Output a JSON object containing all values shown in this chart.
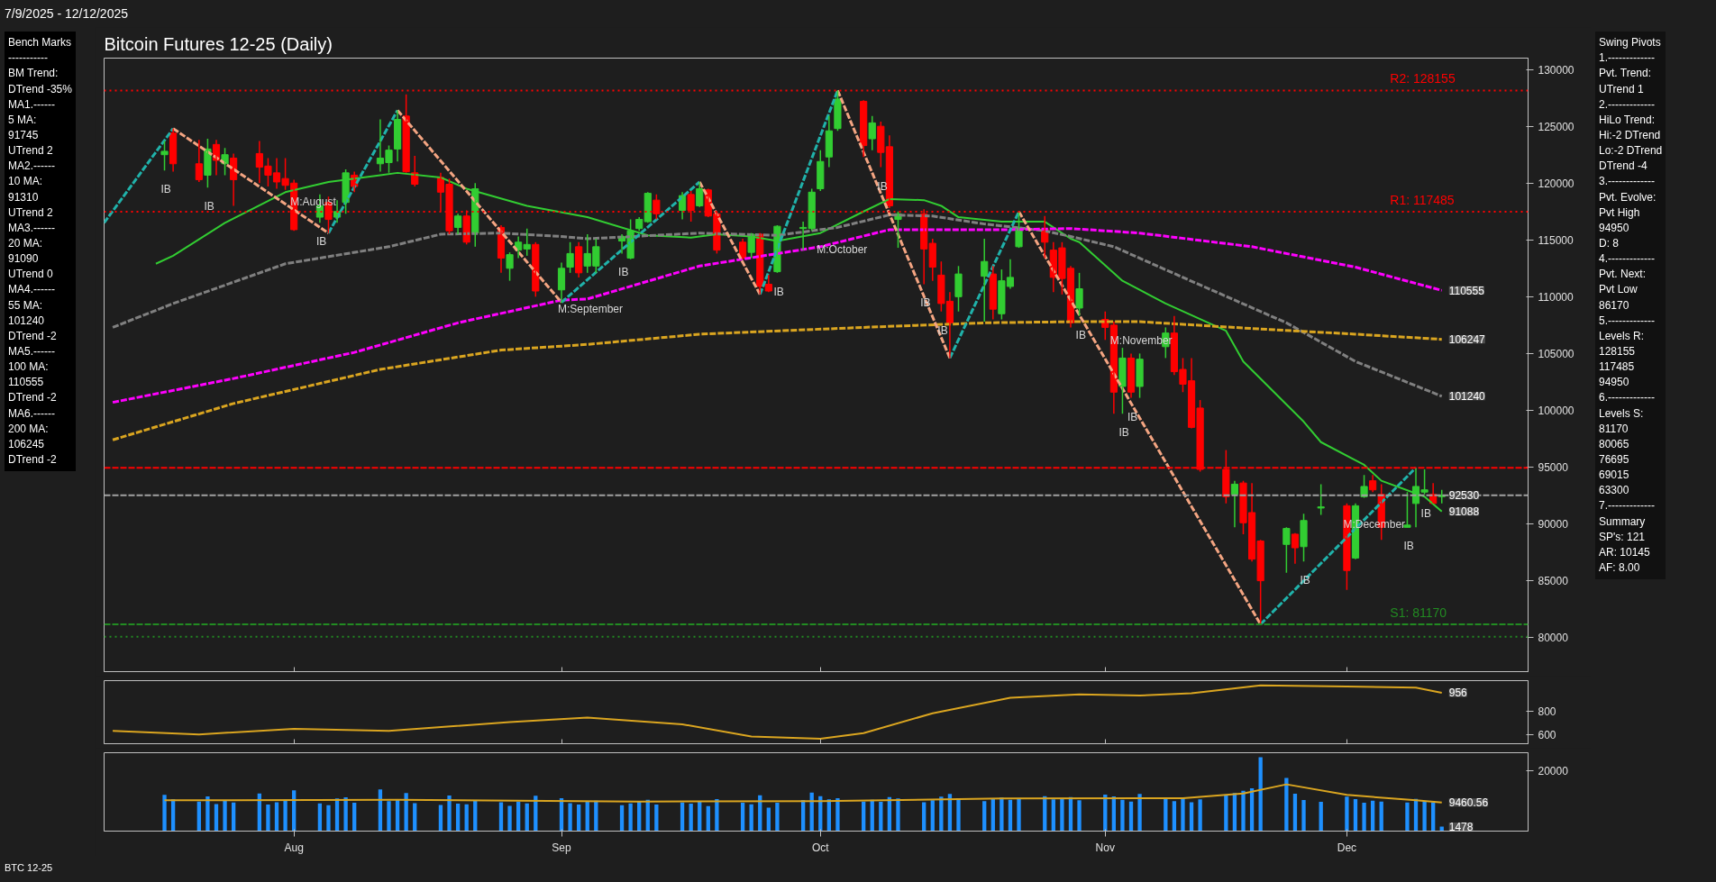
{
  "chart_data": [
    {
      "type": "candlestick",
      "title": "Bitcoin Futures 12-25 (Daily)",
      "x": [
        "2025-07-17",
        "2025-07-18",
        "2025-07-21",
        "2025-07-22",
        "2025-07-23",
        "2025-07-24",
        "2025-07-25",
        "2025-07-28",
        "2025-07-29",
        "2025-07-30",
        "2025-07-31",
        "2025-08-01",
        "2025-08-04",
        "2025-08-05",
        "2025-08-06",
        "2025-08-07",
        "2025-08-08",
        "2025-08-11",
        "2025-08-12",
        "2025-08-13",
        "2025-08-14",
        "2025-08-15",
        "2025-08-18",
        "2025-08-19",
        "2025-08-20",
        "2025-08-21",
        "2025-08-22",
        "2025-08-25",
        "2025-08-26",
        "2025-08-27",
        "2025-08-28",
        "2025-08-29",
        "2025-09-01",
        "2025-09-02",
        "2025-09-03",
        "2025-09-04",
        "2025-09-05",
        "2025-09-08",
        "2025-09-09",
        "2025-09-10",
        "2025-09-11",
        "2025-09-12",
        "2025-09-15",
        "2025-09-16",
        "2025-09-17",
        "2025-09-18",
        "2025-09-19",
        "2025-09-22",
        "2025-09-23",
        "2025-09-24",
        "2025-09-25",
        "2025-09-26",
        "2025-09-29",
        "2025-09-30",
        "2025-10-01",
        "2025-10-02",
        "2025-10-03",
        "2025-10-06",
        "2025-10-07",
        "2025-10-08",
        "2025-10-09",
        "2025-10-10",
        "2025-10-13",
        "2025-10-14",
        "2025-10-15",
        "2025-10-16",
        "2025-10-17",
        "2025-10-20",
        "2025-10-21",
        "2025-10-22",
        "2025-10-23",
        "2025-10-24",
        "2025-10-27",
        "2025-10-28",
        "2025-10-29",
        "2025-10-30",
        "2025-10-31",
        "2025-11-03",
        "2025-11-04",
        "2025-11-05",
        "2025-11-06",
        "2025-11-07",
        "2025-11-10",
        "2025-11-11",
        "2025-11-12",
        "2025-11-13",
        "2025-11-14",
        "2025-11-17",
        "2025-11-18",
        "2025-11-19",
        "2025-11-20",
        "2025-11-21",
        "2025-11-24",
        "2025-11-25",
        "2025-11-26",
        "2025-11-28",
        "2025-12-01",
        "2025-12-02",
        "2025-12-03",
        "2025-12-04",
        "2025-12-05",
        "2025-12-08",
        "2025-12-09",
        "2025-12-10",
        "2025-12-11",
        "2025-12-12"
      ],
      "ohlc": [
        [
          122500,
          123700,
          121100,
          122800
        ],
        [
          124400,
          124800,
          121000,
          121700
        ],
        [
          121700,
          123800,
          120100,
          120300
        ],
        [
          120700,
          123900,
          119600,
          123000
        ],
        [
          123400,
          123800,
          120700,
          122000
        ],
        [
          121700,
          123100,
          120700,
          122500
        ],
        [
          122200,
          122600,
          118000,
          120300
        ],
        [
          122600,
          123700,
          120000,
          121400
        ],
        [
          121500,
          122200,
          119700,
          120700
        ],
        [
          120900,
          122200,
          119500,
          120100
        ],
        [
          120400,
          122200,
          119400,
          119800
        ],
        [
          120000,
          120300,
          115800,
          115900
        ],
        [
          117000,
          119000,
          116500,
          118000
        ],
        [
          118300,
          118800,
          115600,
          116800
        ],
        [
          117000,
          118500,
          116500,
          117500
        ],
        [
          118300,
          121200,
          117300,
          120900
        ],
        [
          120700,
          121000,
          119200,
          119700
        ],
        [
          121700,
          125600,
          121000,
          122200
        ],
        [
          121800,
          123300,
          120900,
          122900
        ],
        [
          123000,
          126400,
          121900,
          125600
        ],
        [
          125900,
          127800,
          120900,
          121000
        ],
        [
          120900,
          122400,
          119700,
          119900
        ],
        [
          120500,
          120900,
          117500,
          119200
        ],
        [
          119900,
          120400,
          115500,
          115800
        ],
        [
          116100,
          117300,
          115500,
          117100
        ],
        [
          117100,
          117600,
          114600,
          114800
        ],
        [
          115600,
          120000,
          114400,
          119500
        ],
        [
          116100,
          116300,
          112100,
          113400
        ],
        [
          112500,
          113900,
          111400,
          113700
        ],
        [
          114100,
          115300,
          113400,
          114800
        ],
        [
          114200,
          116000,
          113600,
          114600
        ],
        [
          114600,
          114800,
          110000,
          110500
        ],
        [
          110600,
          113000,
          109500,
          112500
        ],
        [
          112600,
          114800,
          112100,
          113800
        ],
        [
          114400,
          114800,
          111700,
          112100
        ],
        [
          112700,
          115500,
          112100,
          113800
        ],
        [
          112700,
          115100,
          112100,
          114400
        ],
        [
          114900,
          115500,
          113800,
          115300
        ],
        [
          113400,
          116800,
          113300,
          115800
        ],
        [
          116000,
          117000,
          115800,
          116800
        ],
        [
          116600,
          119200,
          116500,
          119100
        ],
        [
          118500,
          119000,
          116800,
          117300
        ],
        [
          117600,
          119200,
          116800,
          118900
        ],
        [
          119000,
          119300,
          116600,
          117600
        ],
        [
          118000,
          120100,
          117900,
          119500
        ],
        [
          119400,
          119500,
          117000,
          117100
        ],
        [
          117300,
          117500,
          113800,
          114100
        ],
        [
          114800,
          115100,
          113300,
          113400
        ],
        [
          113900,
          115600,
          113400,
          115500
        ],
        [
          115500,
          115600,
          110200,
          110900
        ],
        [
          111100,
          111900,
          110400,
          110500
        ],
        [
          112200,
          116300,
          112100,
          116200
        ],
        [
          116000,
          116600,
          114100,
          116100
        ],
        [
          116000,
          119500,
          115800,
          119200
        ],
        [
          119500,
          122900,
          119300,
          121900
        ],
        [
          122300,
          125900,
          121400,
          124600
        ],
        [
          124800,
          128155,
          124600,
          127400
        ],
        [
          127200,
          127300,
          122300,
          123300
        ],
        [
          123900,
          125900,
          122900,
          125300
        ],
        [
          125000,
          125400,
          121400,
          122700
        ],
        [
          123200,
          124200,
          117800,
          118000
        ],
        [
          116800,
          117500,
          114300,
          117300
        ],
        [
          117300,
          117700,
          111100,
          114200
        ],
        [
          114700,
          115100,
          111400,
          112600
        ],
        [
          111900,
          113100,
          108700,
          109400
        ],
        [
          109600,
          110400,
          104600,
          107700
        ],
        [
          110000,
          112700,
          108700,
          112000
        ],
        [
          111800,
          115100,
          107800,
          113100
        ],
        [
          112000,
          112700,
          108000,
          108900
        ],
        [
          108500,
          112400,
          108000,
          111400
        ],
        [
          110900,
          113300,
          110700,
          111700
        ],
        [
          114400,
          117485,
          114300,
          116100
        ],
        [
          116000,
          117100,
          113400,
          114800
        ],
        [
          114100,
          114800,
          110400,
          111700
        ],
        [
          114300,
          114800,
          110200,
          111600
        ],
        [
          112500,
          112700,
          107300,
          107700
        ],
        [
          109000,
          112100,
          108300,
          110700
        ],
        [
          108000,
          108700,
          106200,
          107300
        ],
        [
          107500,
          107800,
          99700,
          101600
        ],
        [
          102100,
          105500,
          99700,
          104600
        ],
        [
          104600,
          105000,
          101100,
          101600
        ],
        [
          102100,
          105000,
          101100,
          104500
        ],
        [
          105600,
          107300,
          104600,
          106800
        ],
        [
          106800,
          108300,
          103100,
          103400
        ],
        [
          103600,
          104600,
          101600,
          102300
        ],
        [
          102600,
          104600,
          98400,
          98500
        ],
        [
          100200,
          100900,
          94600,
          94800
        ],
        [
          94800,
          96500,
          91800,
          92400
        ],
        [
          92600,
          93800,
          89700,
          93500
        ],
        [
          93600,
          93800,
          89100,
          90100
        ],
        [
          91000,
          93600,
          86700,
          86900
        ],
        [
          88500,
          88600,
          81170,
          85000
        ],
        [
          88200,
          89700,
          85700,
          89600
        ],
        [
          89100,
          89200,
          86500,
          87900
        ],
        [
          88000,
          90900,
          86700,
          90300
        ],
        [
          91400,
          93500,
          90800,
          91500
        ],
        [
          91600,
          91800,
          84200,
          85900
        ],
        [
          87000,
          91800,
          86900,
          91600
        ],
        [
          92400,
          94300,
          92300,
          93300
        ],
        [
          93800,
          94300,
          92800,
          93000
        ],
        [
          92600,
          93500,
          88600,
          89700
        ],
        [
          89700,
          92800,
          89700,
          89900
        ],
        [
          91800,
          94950,
          89700,
          93300
        ],
        [
          92800,
          94800,
          92600,
          93000
        ],
        [
          92600,
          93600,
          91800,
          91800
        ],
        [
          92400,
          93000,
          91800,
          92530
        ]
      ],
      "series": [
        {
          "type": "line",
          "color": "#32cd32",
          "line_style": "solid",
          "x": [
            "2025-07-16",
            "2025-07-18",
            "2025-07-24",
            "2025-07-31",
            "2025-08-05",
            "2025-08-11",
            "2025-08-13",
            "2025-08-18",
            "2025-08-21",
            "2025-08-28",
            "2025-09-04",
            "2025-09-11",
            "2025-09-16",
            "2025-09-19",
            "2025-09-23",
            "2025-09-26",
            "2025-10-01",
            "2025-10-06",
            "2025-10-09",
            "2025-10-13",
            "2025-10-15",
            "2025-10-17",
            "2025-10-22",
            "2025-10-27",
            "2025-10-30",
            "2025-10-31",
            "2025-11-05",
            "2025-11-10",
            "2025-11-17",
            "2025-11-19",
            "2025-11-26",
            "2025-11-28",
            "2025-12-03",
            "2025-12-05",
            "2025-12-10",
            "2025-12-12"
          ],
          "values": [
            112900,
            113600,
            116500,
            119200,
            120100,
            120700,
            120900,
            120500,
            119500,
            118000,
            117000,
            115400,
            115200,
            115500,
            115300,
            114900,
            115600,
            117500,
            118600,
            118500,
            118000,
            117000,
            116600,
            116600,
            115100,
            114800,
            111400,
            109400,
            107000,
            104300,
            99000,
            97200,
            95200,
            93800,
            92400,
            91088
          ]
        },
        {
          "type": "line",
          "color": "#808080",
          "line_style": "dashed",
          "x": [
            "2025-07-11",
            "2025-07-18",
            "2025-07-31",
            "2025-08-12",
            "2025-08-18",
            "2025-08-25",
            "2025-09-01",
            "2025-09-04",
            "2025-09-17",
            "2025-09-26",
            "2025-10-03",
            "2025-10-09",
            "2025-10-14",
            "2025-10-20",
            "2025-10-27",
            "2025-10-30",
            "2025-11-04",
            "2025-11-12",
            "2025-11-24",
            "2025-12-02",
            "2025-12-12"
          ],
          "values": [
            107300,
            109400,
            112900,
            114400,
            115500,
            115600,
            115300,
            115100,
            115600,
            115400,
            116100,
            117200,
            117100,
            116400,
            115800,
            115300,
            114400,
            111700,
            107700,
            104300,
            101240
          ]
        },
        {
          "type": "line",
          "color": "#ff00ff",
          "line_style": "dashed",
          "x": [
            "2025-07-11",
            "2025-07-25",
            "2025-08-08",
            "2025-08-20",
            "2025-09-01",
            "2025-09-04",
            "2025-09-17",
            "2025-10-01",
            "2025-10-09",
            "2025-10-23",
            "2025-10-30",
            "2025-11-07",
            "2025-11-20",
            "2025-12-02",
            "2025-12-12"
          ],
          "values": [
            100700,
            102800,
            105100,
            107700,
            109700,
            109800,
            112700,
            114400,
            115900,
            115900,
            116000,
            115600,
            114400,
            112600,
            110555
          ]
        },
        {
          "type": "line",
          "color": "#daa520",
          "line_style": "dashed",
          "x": [
            "2025-07-11",
            "2025-07-25",
            "2025-08-11",
            "2025-08-25",
            "2025-09-04",
            "2025-09-17",
            "2025-10-06",
            "2025-10-20",
            "2025-10-30",
            "2025-11-07",
            "2025-11-20",
            "2025-12-02",
            "2025-12-12"
          ],
          "values": [
            97400,
            100600,
            103600,
            105300,
            105800,
            106700,
            107300,
            107700,
            107800,
            107800,
            107200,
            106700,
            106247
          ]
        },
        {
          "type": "line",
          "color": "#20b2aa",
          "line_style": "dashed",
          "x": [
            "2025-07-10",
            "2025-07-18"
          ],
          "values": [
            116500,
            124800
          ]
        },
        {
          "type": "line",
          "color": "#f4a582",
          "line_style": "dashed",
          "x": [
            "2025-07-18",
            "2025-08-05"
          ],
          "values": [
            124800,
            115600
          ]
        },
        {
          "type": "line",
          "color": "#20b2aa",
          "line_style": "dashed",
          "x": [
            "2025-08-05",
            "2025-08-13"
          ],
          "values": [
            115600,
            126400
          ]
        },
        {
          "type": "line",
          "color": "#f4a582",
          "line_style": "dashed",
          "x": [
            "2025-08-13",
            "2025-09-01"
          ],
          "values": [
            126400,
            109500
          ]
        },
        {
          "type": "line",
          "color": "#20b2aa",
          "line_style": "dashed",
          "x": [
            "2025-09-01",
            "2025-09-17"
          ],
          "values": [
            109500,
            120100
          ]
        },
        {
          "type": "line",
          "color": "#f4a582",
          "line_style": "dashed",
          "x": [
            "2025-09-17",
            "2025-09-24"
          ],
          "values": [
            120100,
            110200
          ]
        },
        {
          "type": "line",
          "color": "#20b2aa",
          "line_style": "dashed",
          "x": [
            "2025-09-24",
            "2025-10-03"
          ],
          "values": [
            110200,
            128155
          ]
        },
        {
          "type": "line",
          "color": "#f4a582",
          "line_style": "dashed",
          "x": [
            "2025-10-03",
            "2025-10-16"
          ],
          "values": [
            128155,
            104600
          ]
        },
        {
          "type": "line",
          "color": "#20b2aa",
          "line_style": "dashed",
          "x": [
            "2025-10-16",
            "2025-10-24"
          ],
          "values": [
            104600,
            117485
          ]
        },
        {
          "type": "line",
          "color": "#f4a582",
          "line_style": "dashed",
          "x": [
            "2025-10-24",
            "2025-11-21"
          ],
          "values": [
            117485,
            81170
          ]
        },
        {
          "type": "line",
          "color": "#20b2aa",
          "line_style": "dashed",
          "x": [
            "2025-11-21",
            "2025-12-09"
          ],
          "values": [
            81170,
            94950
          ]
        }
      ],
      "xlim": [
        "2025-07-10",
        "2025-12-22"
      ],
      "xticks": [
        {
          "value": "2025-08-01",
          "label": null
        },
        {
          "value": "2025-09-01",
          "label": null
        },
        {
          "value": "2025-10-01",
          "label": null
        },
        {
          "value": "2025-11-03",
          "label": null
        },
        {
          "value": "2025-12-01",
          "label": null
        }
      ],
      "ylim": [
        77000,
        131000
      ],
      "yticks": [
        80000,
        85000,
        90000,
        95000,
        100000,
        105000,
        110000,
        115000,
        120000,
        125000,
        130000
      ],
      "tick_labels": "y",
      "grid": false,
      "ref_lines": [
        {
          "axis": "y",
          "value": 128155,
          "label": "R2: 128155",
          "color": "#ff0000",
          "line_style": "dotted"
        },
        {
          "axis": "y",
          "value": 117485,
          "label": "R1: 117485",
          "color": "#ff0000",
          "line_style": "dotted"
        },
        {
          "axis": "y",
          "value": 94950,
          "color": "#ff0000",
          "line_style": "dashed"
        },
        {
          "axis": "y",
          "value": 92530,
          "color": "#a0a0a0",
          "line_style": "dashed"
        },
        {
          "axis": "y",
          "value": 81170,
          "label": "S1: 81170",
          "color": "#228b22",
          "line_style": "dashed"
        },
        {
          "axis": "y",
          "value": 80065,
          "color": "#228b22",
          "line_style": "dotted"
        }
      ],
      "annotations": [
        "7/9/2025 - 12/12/2025",
        "Bench Marks\n-----------\nBM Trend:\nDTrend -35%\nMA1.------\n5 MA:\n91745\nUTrend 2\nMA2.------\n10 MA:\n91310\nUTrend 2\nMA3.------\n20 MA:\n91090\nUTrend 0\nMA4.------\n55 MA:\n101240\nDTrend -2\nMA5.------\n100 MA:\n110555\nDTrend -2\nMA6.------\n200 MA:\n106245\nDTrend -2",
        "Swing Pivots\n1.-------------\nPvt. Trend:\nUTrend 1\n2.-------------\nHiLo Trend:\nHi:-2 DTrend\nLo:-2 DTrend\nDTrend -4\n3.-------------\nPvt. Evolve:\nPvt High\n94950\nD: 8\n4.-------------\nPvt. Next:\nPvt Low\n86170\n5.-------------\nLevels R:\n128155\n117485\n94950\n6.-------------\nLevels S:\n81170\n80065\n76695\n69015\n63300\n7.-------------\nSummary\nSP's: 121\nAR: 10145\nAF: 8.00",
        "BTC 12-25",
        {
          "text": "M:August",
          "x": "2025-08-01",
          "y": 120000
        },
        {
          "text": "M:September",
          "x": "2025-09-01",
          "y": 110600
        },
        {
          "text": "M:October",
          "x": "2025-10-01",
          "y": 115800
        },
        {
          "text": "M:November",
          "x": "2025-11-04",
          "y": 107800
        },
        {
          "text": "M:December",
          "x": "2025-12-01",
          "y": 91600
        },
        {
          "text": "IB",
          "x": "2025-07-17",
          "y": 121100
        },
        {
          "text": "IB",
          "x": "2025-07-22",
          "y": 119600
        },
        {
          "text": "IB",
          "x": "2025-08-04",
          "y": 116500
        },
        {
          "text": "IB",
          "x": "2025-09-08",
          "y": 113800
        },
        {
          "text": "IB",
          "x": "2025-09-26",
          "y": 112100
        },
        {
          "text": "IB",
          "x": "2025-10-08",
          "y": 121400
        },
        {
          "text": "IB",
          "x": "2025-10-13",
          "y": 111100
        },
        {
          "text": "IB",
          "x": "2025-10-15",
          "y": 108700
        },
        {
          "text": "IB",
          "x": "2025-10-31",
          "y": 108300
        },
        {
          "text": "IB",
          "x": "2025-11-05",
          "y": 99700
        },
        {
          "text": "IB",
          "x": "2025-11-06",
          "y": 101100
        },
        {
          "text": "IB",
          "x": "2025-11-26",
          "y": 86700
        },
        {
          "text": "IB",
          "x": "2025-12-08",
          "y": 89700
        },
        {
          "text": "IB",
          "x": "2025-12-10",
          "y": 92600
        },
        {
          "text": "110555",
          "x": "2025-12-12",
          "y": 110555
        },
        {
          "text": "106247",
          "x": "2025-12-12",
          "y": 106247
        },
        {
          "text": "101240",
          "x": "2025-12-12",
          "y": 101240
        },
        {
          "text": "92530",
          "x": "2025-12-12",
          "y": 92530
        },
        {
          "text": "91088",
          "x": "2025-12-12",
          "y": 91088
        }
      ]
    },
    {
      "type": "line",
      "color": "#daa520",
      "line_style": "solid",
      "x": [
        "2025-07-11",
        "2025-07-21",
        "2025-08-01",
        "2025-08-12",
        "2025-08-26",
        "2025-09-04",
        "2025-09-15",
        "2025-09-23",
        "2025-10-01",
        "2025-10-06",
        "2025-10-14",
        "2025-10-23",
        "2025-10-31",
        "2025-11-07",
        "2025-11-13",
        "2025-11-21",
        "2025-12-01",
        "2025-12-09",
        "2025-12-12"
      ],
      "values": [
        629,
        600,
        648,
        629,
        705,
        743,
        686,
        581,
        562,
        610,
        781,
        914,
        943,
        933,
        952,
        1019,
        1009,
        1000,
        956
      ],
      "xlim": [
        "2025-07-10",
        "2025-12-22"
      ],
      "xticks": [
        {
          "value": "2025-08-01",
          "label": null
        },
        {
          "value": "2025-09-01",
          "label": null
        },
        {
          "value": "2025-10-01",
          "label": null
        },
        {
          "value": "2025-11-03",
          "label": null
        },
        {
          "value": "2025-12-01",
          "label": null
        }
      ],
      "ylim": [
        520,
        1060
      ],
      "yticks": [
        600,
        800
      ],
      "tick_labels": "y",
      "grid": false,
      "annotations": [
        {
          "text": "956",
          "x": "2025-12-12",
          "y": 956
        }
      ]
    },
    {
      "type": "bar",
      "xlim": [
        "2025-07-10",
        "2025-12-22"
      ],
      "xticks": [
        {
          "value": "2025-08-01",
          "label": "Aug"
        },
        {
          "value": "2025-09-01",
          "label": "Sep"
        },
        {
          "value": "2025-10-01",
          "label": "Oct"
        },
        {
          "value": "2025-11-03",
          "label": "Nov"
        },
        {
          "value": "2025-12-01",
          "label": "Dec"
        }
      ],
      "ylim": [
        0,
        26000
      ],
      "yticks": [
        20000
      ],
      "grid": false,
      "series": [
        {
          "type": "bar",
          "color": "#1e90ff",
          "x": [
            "2025-07-17",
            "2025-07-18",
            "2025-07-21",
            "2025-07-22",
            "2025-07-23",
            "2025-07-24",
            "2025-07-25",
            "2025-07-28",
            "2025-07-29",
            "2025-07-30",
            "2025-07-31",
            "2025-08-01",
            "2025-08-04",
            "2025-08-05",
            "2025-08-06",
            "2025-08-07",
            "2025-08-08",
            "2025-08-11",
            "2025-08-12",
            "2025-08-13",
            "2025-08-14",
            "2025-08-15",
            "2025-08-18",
            "2025-08-19",
            "2025-08-20",
            "2025-08-21",
            "2025-08-22",
            "2025-08-25",
            "2025-08-26",
            "2025-08-27",
            "2025-08-28",
            "2025-08-29",
            "2025-09-01",
            "2025-09-02",
            "2025-09-03",
            "2025-09-04",
            "2025-09-05",
            "2025-09-08",
            "2025-09-09",
            "2025-09-10",
            "2025-09-11",
            "2025-09-12",
            "2025-09-15",
            "2025-09-16",
            "2025-09-17",
            "2025-09-18",
            "2025-09-19",
            "2025-09-22",
            "2025-09-23",
            "2025-09-24",
            "2025-09-25",
            "2025-09-26",
            "2025-09-29",
            "2025-09-30",
            "2025-10-01",
            "2025-10-02",
            "2025-10-03",
            "2025-10-06",
            "2025-10-07",
            "2025-10-08",
            "2025-10-09",
            "2025-10-10",
            "2025-10-13",
            "2025-10-14",
            "2025-10-15",
            "2025-10-16",
            "2025-10-17",
            "2025-10-20",
            "2025-10-21",
            "2025-10-22",
            "2025-10-23",
            "2025-10-24",
            "2025-10-27",
            "2025-10-28",
            "2025-10-29",
            "2025-10-30",
            "2025-10-31",
            "2025-11-03",
            "2025-11-04",
            "2025-11-05",
            "2025-11-06",
            "2025-11-07",
            "2025-11-10",
            "2025-11-11",
            "2025-11-12",
            "2025-11-13",
            "2025-11-14",
            "2025-11-17",
            "2025-11-18",
            "2025-11-19",
            "2025-11-20",
            "2025-11-21",
            "2025-11-24",
            "2025-11-25",
            "2025-11-26",
            "2025-11-28",
            "2025-12-01",
            "2025-12-02",
            "2025-12-03",
            "2025-12-04",
            "2025-12-05",
            "2025-12-08",
            "2025-12-09",
            "2025-12-10",
            "2025-12-11",
            "2025-12-12"
          ],
          "values": [
            12000,
            10500,
            9800,
            11500,
            9000,
            10200,
            9500,
            12500,
            8800,
            9600,
            10400,
            13500,
            9200,
            8600,
            10800,
            11200,
            9400,
            13800,
            9900,
            10600,
            12600,
            9300,
            8700,
            11800,
            9100,
            8900,
            10300,
            9600,
            8400,
            9800,
            9200,
            11700,
            10900,
            9300,
            8800,
            9700,
            10100,
            8600,
            9200,
            9900,
            10400,
            8800,
            9500,
            9100,
            9800,
            8300,
            10600,
            9400,
            8900,
            11900,
            7800,
            9400,
            10300,
            12800,
            11600,
            10500,
            10900,
            9800,
            10400,
            9700,
            11300,
            10800,
            9600,
            10200,
            11400,
            12300,
            10800,
            9900,
            10600,
            11100,
            10400,
            10700,
            11600,
            10500,
            10900,
            11300,
            10200,
            12100,
            11500,
            10400,
            9800,
            12300,
            10700,
            9900,
            11200,
            9600,
            10500,
            11800,
            12600,
            13400,
            14200,
            24500,
            17600,
            12400,
            10300,
            9700,
            11400,
            10600,
            9400,
            10100,
            9800,
            9500,
            10700,
            9900,
            9600,
            1478
          ]
        },
        {
          "type": "line",
          "color": "#daa520",
          "x": [
            "2025-07-17",
            "2025-08-13",
            "2025-09-10",
            "2025-10-01",
            "2025-10-22",
            "2025-11-12",
            "2025-11-19",
            "2025-11-24",
            "2025-12-01",
            "2025-12-09",
            "2025-12-12"
          ],
          "values": [
            10200,
            10400,
            9800,
            9900,
            10800,
            10900,
            12500,
            15500,
            12000,
            10200,
            9460.56
          ]
        }
      ],
      "annotations": [
        {
          "text": "9460.56",
          "x": "2025-12-12",
          "y": 9460.56
        },
        {
          "text": "1478",
          "x": "2025-12-12",
          "y": 1478
        }
      ]
    }
  ]
}
